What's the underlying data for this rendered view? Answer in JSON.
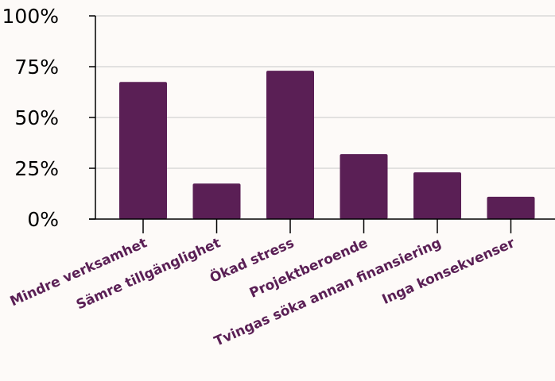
{
  "chart_data": {
    "type": "bar",
    "categories": [
      "Mindre verksamhet",
      "Sämre tillgänglighet",
      "Ökad stress",
      "Projektberoende",
      "Tvingas söka annan finansiering",
      "Inga konsekvenser"
    ],
    "values": [
      67.5,
      17.5,
      73,
      32,
      23,
      11
    ],
    "ylim": [
      0,
      100
    ],
    "yticks": [
      0,
      25,
      50,
      75,
      100
    ],
    "ytick_labels": [
      "0%",
      "25%",
      "50%",
      "75%",
      "100%"
    ],
    "title": "",
    "xlabel": "",
    "ylabel": "",
    "grid": true,
    "bar_color": "#5a1f55"
  }
}
